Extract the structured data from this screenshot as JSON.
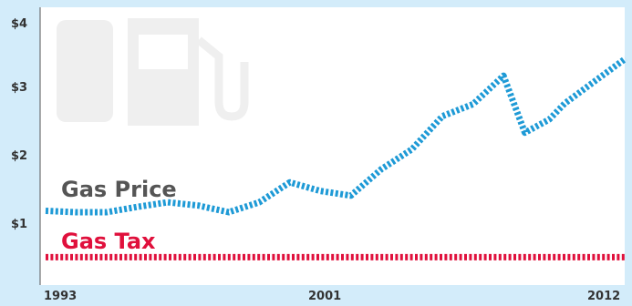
{
  "chart_data": {
    "type": "line",
    "title": "",
    "xlabel": "",
    "ylabel": "",
    "xlim": [
      1993,
      2012
    ],
    "ylim": [
      0,
      4
    ],
    "x_tick_labels": [
      "1993",
      "2001",
      "2012"
    ],
    "y_tick_labels": [
      "$4",
      "$3",
      "$2",
      "$1"
    ],
    "grid": false,
    "legend": "none",
    "series": [
      {
        "name": "Gas Price",
        "color": "#1e9ad6",
        "x": [
          1993,
          1994,
          1995,
          1996,
          1997,
          1998,
          1999,
          2000,
          2001,
          2002,
          2003,
          2004,
          2005,
          2006,
          2007,
          2008,
          2008.7,
          2009.5,
          2010,
          2011,
          2012
        ],
        "values": [
          1.12,
          1.1,
          1.1,
          1.18,
          1.25,
          1.2,
          1.1,
          1.25,
          1.55,
          1.42,
          1.35,
          1.75,
          2.05,
          2.55,
          2.73,
          3.16,
          2.3,
          2.5,
          2.74,
          3.08,
          3.42
        ]
      },
      {
        "name": "Gas Tax",
        "color": "#e0103c",
        "x": [
          1993,
          2012
        ],
        "values": [
          0.42,
          0.42
        ]
      }
    ]
  }
}
